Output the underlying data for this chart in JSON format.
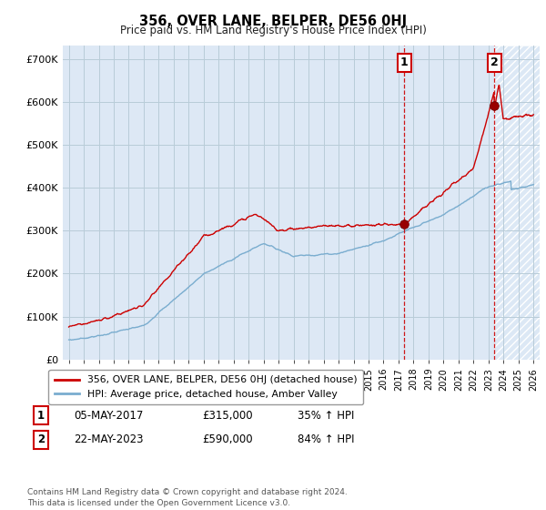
{
  "title": "356, OVER LANE, BELPER, DE56 0HJ",
  "subtitle": "Price paid vs. HM Land Registry's House Price Index (HPI)",
  "ylim": [
    0,
    730000
  ],
  "yticks": [
    0,
    100000,
    200000,
    300000,
    400000,
    500000,
    600000,
    700000
  ],
  "ytick_labels": [
    "£0",
    "£100K",
    "£200K",
    "£300K",
    "£400K",
    "£500K",
    "£600K",
    "£700K"
  ],
  "line1_color": "#cc0000",
  "line2_color": "#7aadcf",
  "annotation1_label": "1",
  "annotation2_label": "2",
  "annotation1_date": "05-MAY-2017",
  "annotation1_price": "£315,000",
  "annotation1_hpi": "35% ↑ HPI",
  "annotation2_date": "22-MAY-2023",
  "annotation2_price": "£590,000",
  "annotation2_hpi": "84% ↑ HPI",
  "legend_line1": "356, OVER LANE, BELPER, DE56 0HJ (detached house)",
  "legend_line2": "HPI: Average price, detached house, Amber Valley",
  "footer": "Contains HM Land Registry data © Crown copyright and database right 2024.\nThis data is licensed under the Open Government Licence v3.0.",
  "background_color": "#dde8f5",
  "grid_color": "#c8d8e8",
  "vline1_x": 2017.37,
  "vline2_x": 2023.38,
  "marker1_x": 2017.37,
  "marker1_y": 315000,
  "marker2_x": 2023.38,
  "marker2_y": 590000,
  "hatch_start": 2023.38,
  "xlim_left": 1994.6,
  "xlim_right": 2026.4
}
